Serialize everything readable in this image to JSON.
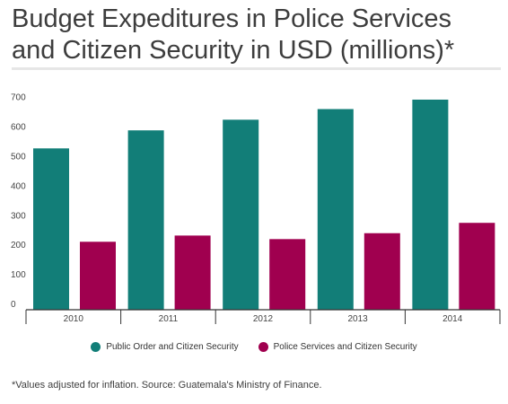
{
  "title": "Budget Expeditures in Police Services and Citizen Security in USD (millions)*",
  "note": "*Values adjusted for inflation. Source: Guatemala's Ministry of Finance.",
  "chart_data": {
    "type": "bar",
    "title": "Budget Expeditures in Police Services and Citizen Security in USD (millions)*",
    "categories": [
      "2010",
      "2011",
      "2012",
      "2013",
      "2014"
    ],
    "series": [
      {
        "name": "Public Order and Citizen Security",
        "color": "#127e78",
        "values": [
          546,
          607,
          643,
          679,
          711
        ]
      },
      {
        "name": "Police Services and Citizen Security",
        "color": "#a0004f",
        "values": [
          230,
          251,
          239,
          259,
          294
        ]
      }
    ],
    "yticks": [
      0,
      100,
      200,
      300,
      400,
      500,
      600,
      700
    ],
    "ylim": [
      0,
      720
    ],
    "grid": false,
    "legend": "bottom-center",
    "xlabel": "",
    "ylabel": ""
  }
}
